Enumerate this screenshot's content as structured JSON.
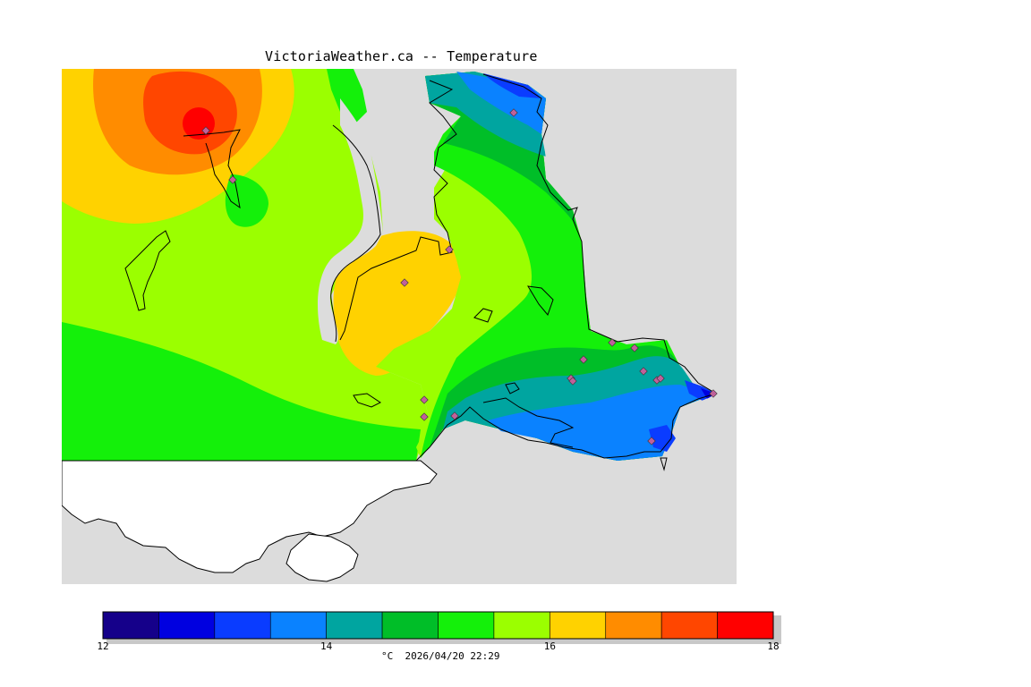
{
  "title": "VictoriaWeather.ca -- Temperature",
  "caption": "°C  2026/04/20 22:29",
  "legend": {
    "min": 12,
    "max": 18,
    "tick_labels": [
      "12",
      "14",
      "16",
      "18"
    ],
    "bins": [
      {
        "from": 12.0,
        "to": 12.5,
        "color": "#15008a"
      },
      {
        "from": 12.5,
        "to": 13.0,
        "color": "#0000e0"
      },
      {
        "from": 13.0,
        "to": 13.5,
        "color": "#0a3cff"
      },
      {
        "from": 13.5,
        "to": 14.0,
        "color": "#0a82ff"
      },
      {
        "from": 14.0,
        "to": 14.5,
        "color": "#00a5a0"
      },
      {
        "from": 14.5,
        "to": 15.0,
        "color": "#00be28"
      },
      {
        "from": 15.0,
        "to": 15.5,
        "color": "#14f00a"
      },
      {
        "from": 15.5,
        "to": 16.0,
        "color": "#9bff00"
      },
      {
        "from": 16.0,
        "to": 16.5,
        "color": "#ffd200"
      },
      {
        "from": 16.5,
        "to": 17.0,
        "color": "#ff8c00"
      },
      {
        "from": 17.0,
        "to": 17.5,
        "color": "#ff4600"
      },
      {
        "from": 17.5,
        "to": 18.0,
        "color": "#ff0000"
      }
    ]
  },
  "colors": {
    "water": "#dcdcdc",
    "unmapped_land": "#ffffff",
    "coastline": "#000000",
    "station_marker": "#c0609a"
  },
  "map": {
    "stations_count": 20
  }
}
